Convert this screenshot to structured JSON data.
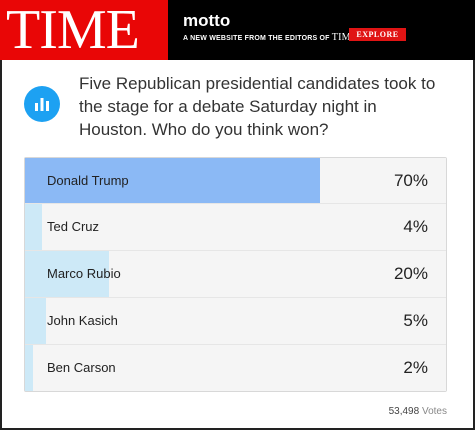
{
  "header": {
    "logo_text": "TIME",
    "motto_title": "motto",
    "motto_subtitle": "A NEW WEBSITE FROM THE EDITORS OF",
    "motto_brand": "TIME",
    "explore_label": "EXPLORE",
    "logo_color": "#e90606"
  },
  "poll": {
    "icon": "bar-chart-icon",
    "question": "Five Republican presidential candidates took to the stage for a debate Saturday night in Houston. Who do you think won?",
    "options": [
      {
        "name": "Donald Trump",
        "percent_label": "70%",
        "percent": 70,
        "leader": true
      },
      {
        "name": "Ted Cruz",
        "percent_label": "4%",
        "percent": 4,
        "leader": false
      },
      {
        "name": "Marco Rubio",
        "percent_label": "20%",
        "percent": 20,
        "leader": false
      },
      {
        "name": "John Kasich",
        "percent_label": "5%",
        "percent": 5,
        "leader": false
      },
      {
        "name": "Ben Carson",
        "percent_label": "2%",
        "percent": 2,
        "leader": false
      }
    ],
    "vote_count": "53,498",
    "vote_label": "Votes",
    "leader_color": "#8bb9f5",
    "bar_color": "#cde9f7"
  }
}
